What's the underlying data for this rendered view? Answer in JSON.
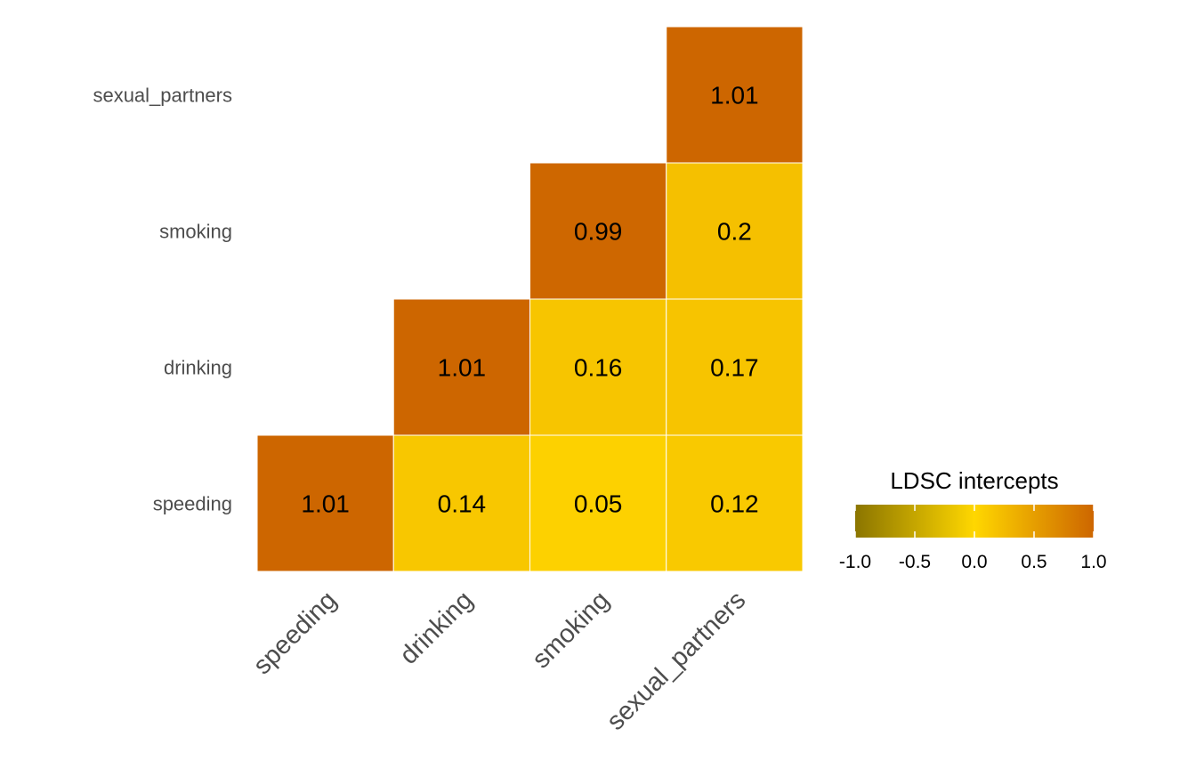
{
  "chart_data": {
    "type": "heatmap",
    "x_categories": [
      "speeding",
      "drinking",
      "smoking",
      "sexual_partners"
    ],
    "y_categories": [
      "speeding",
      "drinking",
      "smoking",
      "sexual_partners"
    ],
    "cells": [
      {
        "x": "speeding",
        "y": "speeding",
        "value": 1.01,
        "label": "1.01"
      },
      {
        "x": "drinking",
        "y": "speeding",
        "value": 0.14,
        "label": "0.14"
      },
      {
        "x": "smoking",
        "y": "speeding",
        "value": 0.05,
        "label": "0.05"
      },
      {
        "x": "sexual_partners",
        "y": "speeding",
        "value": 0.12,
        "label": "0.12"
      },
      {
        "x": "drinking",
        "y": "drinking",
        "value": 1.01,
        "label": "1.01"
      },
      {
        "x": "smoking",
        "y": "drinking",
        "value": 0.16,
        "label": "0.16"
      },
      {
        "x": "sexual_partners",
        "y": "drinking",
        "value": 0.17,
        "label": "0.17"
      },
      {
        "x": "smoking",
        "y": "smoking",
        "value": 0.99,
        "label": "0.99"
      },
      {
        "x": "sexual_partners",
        "y": "smoking",
        "value": 0.2,
        "label": "0.2"
      },
      {
        "x": "sexual_partners",
        "y": "sexual_partners",
        "value": 1.01,
        "label": "1.01"
      }
    ],
    "legend": {
      "title": "LDSC intercepts",
      "position": "right",
      "range": [
        -1.0,
        1.0
      ],
      "ticks": [
        -1.0,
        -0.5,
        0.0,
        0.5,
        1.0
      ],
      "tick_labels": [
        "-1.0",
        "-0.5",
        "0.0",
        "0.5",
        "1.0"
      ]
    },
    "color_scale": {
      "low": "#8b7500",
      "mid": "#ffd700",
      "high": "#cd6600",
      "midpoint": 0
    },
    "grid": false
  }
}
